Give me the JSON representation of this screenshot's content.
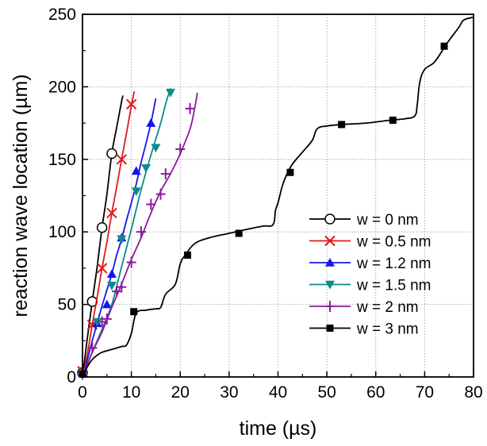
{
  "chart_data": {
    "type": "line",
    "xlabel": "time (µs)",
    "ylabel": "reaction wave location (µm)",
    "xlim": [
      0,
      80
    ],
    "ylim": [
      0,
      250
    ],
    "xticks": [
      0,
      10,
      20,
      30,
      40,
      50,
      60,
      70,
      80
    ],
    "yticks": [
      0,
      50,
      100,
      150,
      200,
      250
    ],
    "grid": true,
    "legend_position": "bottom-right",
    "series": [
      {
        "name": "w = 0 nm",
        "color": "#000000",
        "marker": "open-circle",
        "x": [
          0,
          1,
          2,
          3,
          4,
          5,
          6,
          7,
          8,
          8.3
        ],
        "y": [
          0,
          27,
          52,
          76,
          103,
          126,
          154,
          172,
          190,
          194
        ],
        "marker_points": [
          [
            0,
            3
          ],
          [
            2,
            52
          ],
          [
            4,
            103
          ],
          [
            6,
            154
          ]
        ]
      },
      {
        "name": "w = 0.5 nm",
        "color": "#e0191b",
        "marker": "cross",
        "x": [
          0,
          1,
          2,
          3,
          4,
          5,
          6,
          7,
          8,
          9,
          10,
          10.6
        ],
        "y": [
          0,
          16,
          36,
          55,
          75,
          93,
          113,
          131,
          150,
          168,
          187,
          197
        ],
        "marker_points": [
          [
            0,
            4
          ],
          [
            2,
            36
          ],
          [
            4,
            75
          ],
          [
            6,
            113
          ],
          [
            8,
            150
          ],
          [
            10,
            188
          ]
        ]
      },
      {
        "name": "w = 1.2 nm",
        "color": "#1515e8",
        "marker": "triangle-up",
        "x": [
          0,
          1,
          2,
          3,
          4,
          5,
          6,
          7,
          8,
          9,
          10,
          11,
          12,
          13,
          14,
          15
        ],
        "y": [
          0,
          12,
          25,
          37,
          49,
          60,
          71,
          84,
          95,
          108,
          120,
          133,
          148,
          161,
          175,
          192
        ],
        "marker_points": [
          [
            0,
            3
          ],
          [
            3,
            37
          ],
          [
            5,
            50
          ],
          [
            6,
            71
          ],
          [
            8,
            96
          ],
          [
            11,
            142
          ],
          [
            14,
            175
          ]
        ]
      },
      {
        "name": "w = 1.5 nm",
        "color": "#0d8a8a",
        "marker": "triangle-down",
        "x": [
          0,
          2,
          4,
          6,
          8,
          10,
          12,
          14,
          16,
          17,
          18
        ],
        "y": [
          0,
          17,
          33,
          50,
          76,
          102,
          129,
          153,
          175,
          188,
          199
        ],
        "marker_points": [
          [
            0,
            2
          ],
          [
            3,
            38
          ],
          [
            6,
            63
          ],
          [
            8,
            95
          ],
          [
            11,
            128
          ],
          [
            13,
            144
          ],
          [
            15,
            158
          ],
          [
            18,
            196
          ]
        ]
      },
      {
        "name": "w = 2 nm",
        "color": "#8b1a9b",
        "marker": "plus",
        "x": [
          0,
          2,
          4,
          6,
          8,
          10,
          12,
          14,
          16,
          18,
          20,
          22,
          23,
          23.5
        ],
        "y": [
          0,
          17,
          31,
          48,
          64,
          81,
          96,
          113,
          128,
          140,
          154,
          171,
          186,
          196
        ],
        "marker_points": [
          [
            0,
            2
          ],
          [
            2,
            20
          ],
          [
            4,
            38
          ],
          [
            5,
            40
          ],
          [
            7,
            59
          ],
          [
            8,
            62
          ],
          [
            10,
            79
          ],
          [
            12,
            100
          ],
          [
            14,
            119
          ],
          [
            16,
            126
          ],
          [
            17,
            140
          ],
          [
            20,
            157
          ],
          [
            22,
            185
          ]
        ]
      },
      {
        "name": "w = 3 nm",
        "color": "#000000",
        "marker": "filled-square",
        "x": [
          0,
          1,
          2,
          3,
          4,
          6,
          8,
          9,
          10,
          11,
          13,
          15,
          16,
          17,
          19,
          20,
          21,
          23,
          26,
          30,
          34,
          37,
          39,
          39.5,
          40,
          41,
          42,
          43,
          45,
          47,
          48,
          50,
          53,
          58,
          63,
          66,
          68,
          68.5,
          69,
          70,
          72,
          74,
          75,
          77,
          78,
          80
        ],
        "y": [
          0,
          7,
          12,
          15,
          17,
          19,
          21,
          22,
          30,
          44,
          46,
          47,
          48,
          57,
          64,
          78,
          84,
          92,
          96,
          99,
          102,
          104,
          105,
          115,
          120,
          133,
          141,
          147,
          155,
          163,
          171,
          173,
          174,
          175,
          177,
          178,
          180,
          188,
          203,
          212,
          217,
          227,
          232,
          241,
          246,
          248
        ],
        "marker_points": [
          [
            0,
            2
          ],
          [
            10.5,
            45
          ],
          [
            21.5,
            84
          ],
          [
            32,
            99
          ],
          [
            42.5,
            141
          ],
          [
            53,
            174
          ],
          [
            63.5,
            177
          ],
          [
            74,
            228
          ]
        ]
      }
    ]
  }
}
